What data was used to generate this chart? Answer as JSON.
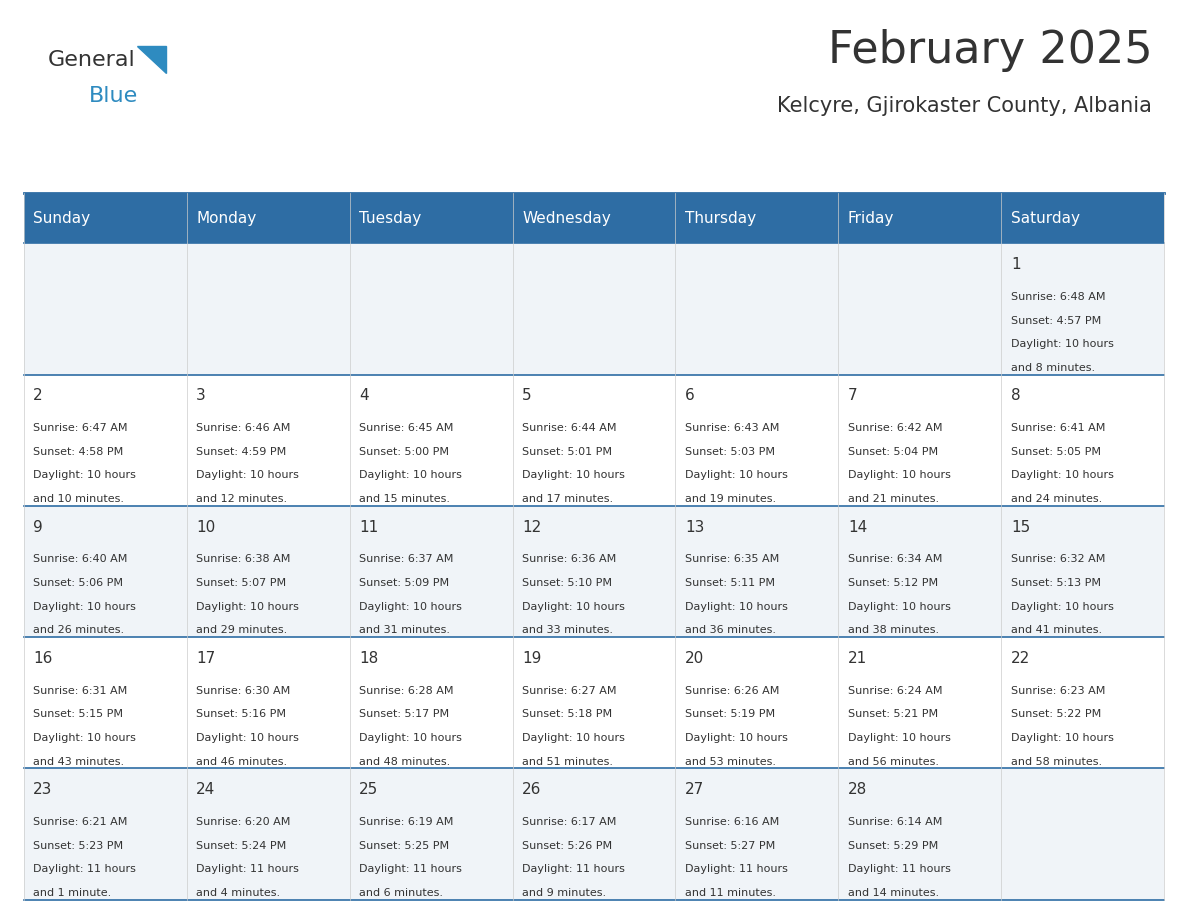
{
  "title": "February 2025",
  "subtitle": "Kelcyre, Gjirokaster County, Albania",
  "header_bg": "#2E6DA4",
  "header_text_color": "#FFFFFF",
  "cell_bg_odd": "#F0F4F8",
  "cell_bg_even": "#FFFFFF",
  "border_color": "#2E6DA4",
  "day_headers": [
    "Sunday",
    "Monday",
    "Tuesday",
    "Wednesday",
    "Thursday",
    "Friday",
    "Saturday"
  ],
  "title_color": "#333333",
  "subtitle_color": "#333333",
  "day_number_color": "#333333",
  "cell_text_color": "#333333",
  "days": [
    {
      "day": 1,
      "col": 6,
      "row": 0,
      "sunrise": "6:48 AM",
      "sunset": "4:57 PM",
      "daylight": "10 hours and 8 minutes"
    },
    {
      "day": 2,
      "col": 0,
      "row": 1,
      "sunrise": "6:47 AM",
      "sunset": "4:58 PM",
      "daylight": "10 hours and 10 minutes"
    },
    {
      "day": 3,
      "col": 1,
      "row": 1,
      "sunrise": "6:46 AM",
      "sunset": "4:59 PM",
      "daylight": "10 hours and 12 minutes"
    },
    {
      "day": 4,
      "col": 2,
      "row": 1,
      "sunrise": "6:45 AM",
      "sunset": "5:00 PM",
      "daylight": "10 hours and 15 minutes"
    },
    {
      "day": 5,
      "col": 3,
      "row": 1,
      "sunrise": "6:44 AM",
      "sunset": "5:01 PM",
      "daylight": "10 hours and 17 minutes"
    },
    {
      "day": 6,
      "col": 4,
      "row": 1,
      "sunrise": "6:43 AM",
      "sunset": "5:03 PM",
      "daylight": "10 hours and 19 minutes"
    },
    {
      "day": 7,
      "col": 5,
      "row": 1,
      "sunrise": "6:42 AM",
      "sunset": "5:04 PM",
      "daylight": "10 hours and 21 minutes"
    },
    {
      "day": 8,
      "col": 6,
      "row": 1,
      "sunrise": "6:41 AM",
      "sunset": "5:05 PM",
      "daylight": "10 hours and 24 minutes"
    },
    {
      "day": 9,
      "col": 0,
      "row": 2,
      "sunrise": "6:40 AM",
      "sunset": "5:06 PM",
      "daylight": "10 hours and 26 minutes"
    },
    {
      "day": 10,
      "col": 1,
      "row": 2,
      "sunrise": "6:38 AM",
      "sunset": "5:07 PM",
      "daylight": "10 hours and 29 minutes"
    },
    {
      "day": 11,
      "col": 2,
      "row": 2,
      "sunrise": "6:37 AM",
      "sunset": "5:09 PM",
      "daylight": "10 hours and 31 minutes"
    },
    {
      "day": 12,
      "col": 3,
      "row": 2,
      "sunrise": "6:36 AM",
      "sunset": "5:10 PM",
      "daylight": "10 hours and 33 minutes"
    },
    {
      "day": 13,
      "col": 4,
      "row": 2,
      "sunrise": "6:35 AM",
      "sunset": "5:11 PM",
      "daylight": "10 hours and 36 minutes"
    },
    {
      "day": 14,
      "col": 5,
      "row": 2,
      "sunrise": "6:34 AM",
      "sunset": "5:12 PM",
      "daylight": "10 hours and 38 minutes"
    },
    {
      "day": 15,
      "col": 6,
      "row": 2,
      "sunrise": "6:32 AM",
      "sunset": "5:13 PM",
      "daylight": "10 hours and 41 minutes"
    },
    {
      "day": 16,
      "col": 0,
      "row": 3,
      "sunrise": "6:31 AM",
      "sunset": "5:15 PM",
      "daylight": "10 hours and 43 minutes"
    },
    {
      "day": 17,
      "col": 1,
      "row": 3,
      "sunrise": "6:30 AM",
      "sunset": "5:16 PM",
      "daylight": "10 hours and 46 minutes"
    },
    {
      "day": 18,
      "col": 2,
      "row": 3,
      "sunrise": "6:28 AM",
      "sunset": "5:17 PM",
      "daylight": "10 hours and 48 minutes"
    },
    {
      "day": 19,
      "col": 3,
      "row": 3,
      "sunrise": "6:27 AM",
      "sunset": "5:18 PM",
      "daylight": "10 hours and 51 minutes"
    },
    {
      "day": 20,
      "col": 4,
      "row": 3,
      "sunrise": "6:26 AM",
      "sunset": "5:19 PM",
      "daylight": "10 hours and 53 minutes"
    },
    {
      "day": 21,
      "col": 5,
      "row": 3,
      "sunrise": "6:24 AM",
      "sunset": "5:21 PM",
      "daylight": "10 hours and 56 minutes"
    },
    {
      "day": 22,
      "col": 6,
      "row": 3,
      "sunrise": "6:23 AM",
      "sunset": "5:22 PM",
      "daylight": "10 hours and 58 minutes"
    },
    {
      "day": 23,
      "col": 0,
      "row": 4,
      "sunrise": "6:21 AM",
      "sunset": "5:23 PM",
      "daylight": "11 hours and 1 minute"
    },
    {
      "day": 24,
      "col": 1,
      "row": 4,
      "sunrise": "6:20 AM",
      "sunset": "5:24 PM",
      "daylight": "11 hours and 4 minutes"
    },
    {
      "day": 25,
      "col": 2,
      "row": 4,
      "sunrise": "6:19 AM",
      "sunset": "5:25 PM",
      "daylight": "11 hours and 6 minutes"
    },
    {
      "day": 26,
      "col": 3,
      "row": 4,
      "sunrise": "6:17 AM",
      "sunset": "5:26 PM",
      "daylight": "11 hours and 9 minutes"
    },
    {
      "day": 27,
      "col": 4,
      "row": 4,
      "sunrise": "6:16 AM",
      "sunset": "5:27 PM",
      "daylight": "11 hours and 11 minutes"
    },
    {
      "day": 28,
      "col": 5,
      "row": 4,
      "sunrise": "6:14 AM",
      "sunset": "5:29 PM",
      "daylight": "11 hours and 14 minutes"
    }
  ],
  "logo_text1": "General",
  "logo_text2": "Blue",
  "logo_color1": "#333333",
  "logo_color2": "#2E8BC0"
}
